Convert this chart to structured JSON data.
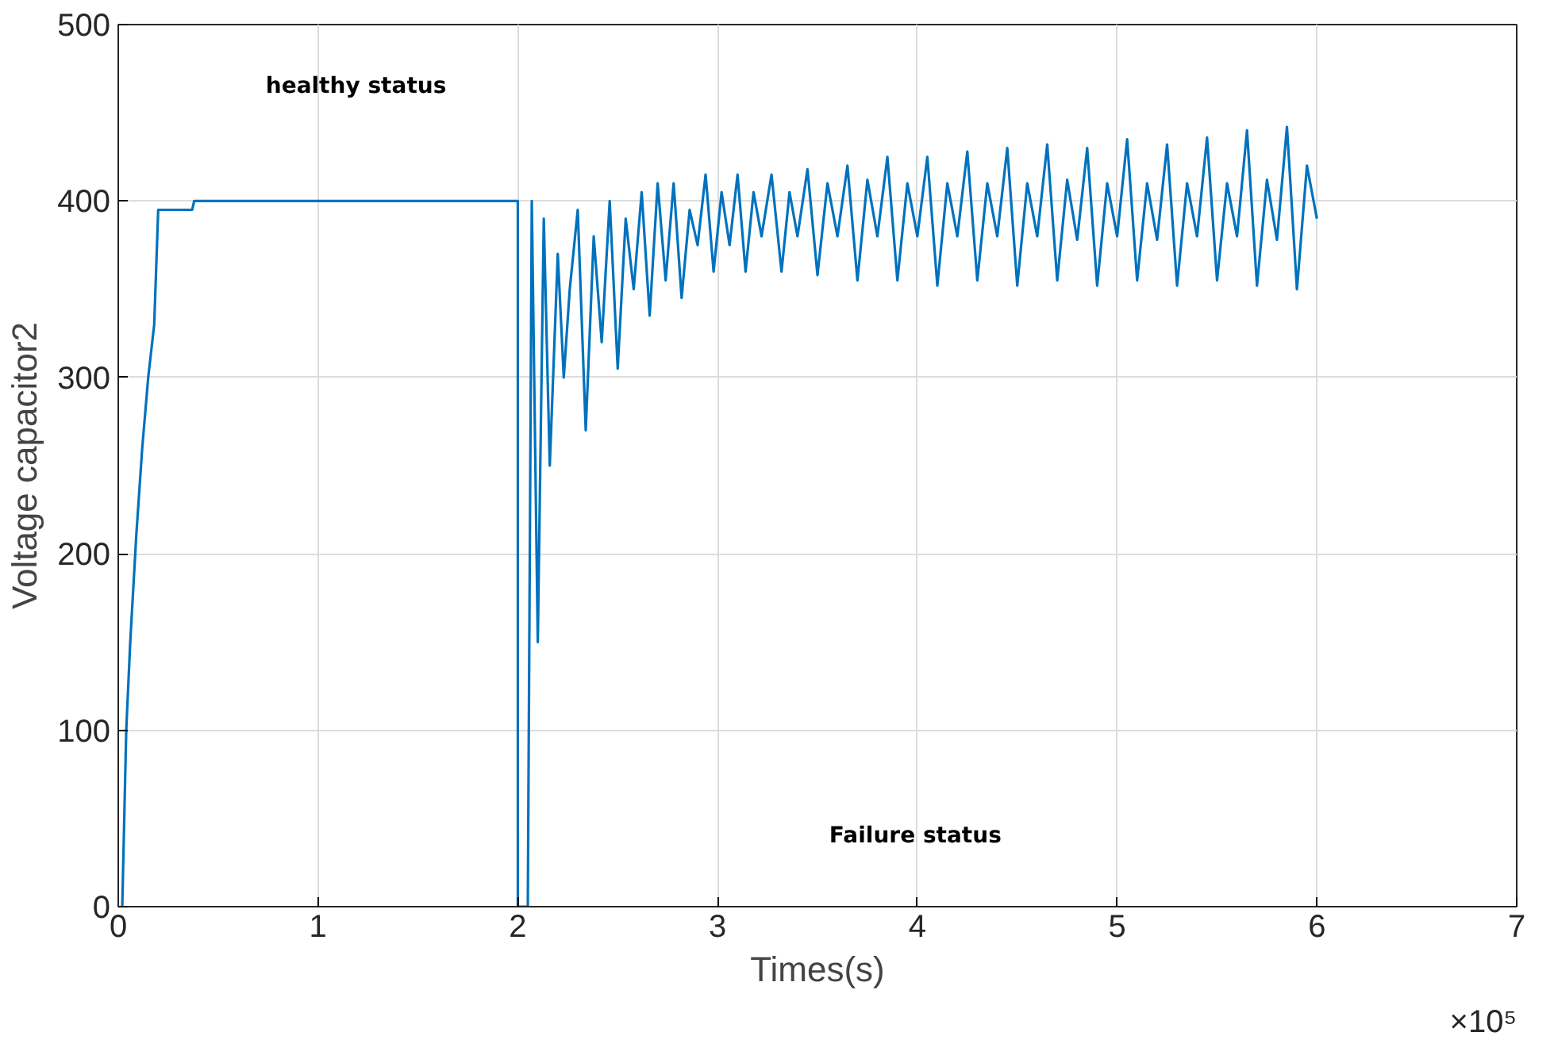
{
  "chart_data": {
    "type": "line",
    "xlabel": "Times(s)",
    "ylabel": "Voltage capacitor2",
    "xlim": [
      0,
      7
    ],
    "ylim": [
      0,
      500
    ],
    "xticks": [
      0,
      1,
      2,
      3,
      4,
      5,
      6,
      7
    ],
    "yticks": [
      0,
      100,
      200,
      300,
      400,
      500
    ],
    "grid": true,
    "line_style": "solid",
    "annotations": [
      "healthy status",
      "Failure status",
      "×10⁵"
    ],
    "series": [
      {
        "color": "#0072bd",
        "x": [
          0.02,
          0.04,
          0.06,
          0.09,
          0.12,
          0.15,
          0.18,
          0.2,
          0.37,
          0.38,
          2.0,
          2.0,
          2.05,
          2.07,
          2.1,
          2.13,
          2.16,
          2.2,
          2.23,
          2.26,
          2.3,
          2.34,
          2.38,
          2.42,
          2.46,
          2.5,
          2.54,
          2.58,
          2.62,
          2.66,
          2.7,
          2.74,
          2.78,
          2.82,
          2.86,
          2.9,
          2.94,
          2.98,
          3.02,
          3.06,
          3.1,
          3.14,
          3.18,
          3.22,
          3.27,
          3.32,
          3.36,
          3.4,
          3.45,
          3.5,
          3.55,
          3.6,
          3.65,
          3.7,
          3.75,
          3.8,
          3.85,
          3.9,
          3.95,
          4.0,
          4.05,
          4.1,
          4.15,
          4.2,
          4.25,
          4.3,
          4.35,
          4.4,
          4.45,
          4.5,
          4.55,
          4.6,
          4.65,
          4.7,
          4.75,
          4.8,
          4.85,
          4.9,
          4.95,
          5.0,
          5.05,
          5.1,
          5.15,
          5.2,
          5.25,
          5.3,
          5.35,
          5.4,
          5.45,
          5.5,
          5.55,
          5.6,
          5.65,
          5.7,
          5.75,
          5.8,
          5.85,
          5.9,
          5.95,
          6.0
        ],
        "values": [
          0,
          100,
          150,
          210,
          260,
          300,
          330,
          395,
          395,
          400,
          400,
          0,
          0,
          400,
          150,
          390,
          250,
          370,
          300,
          350,
          395,
          270,
          380,
          320,
          400,
          305,
          390,
          350,
          405,
          335,
          410,
          355,
          410,
          345,
          395,
          375,
          415,
          360,
          405,
          375,
          415,
          360,
          405,
          380,
          415,
          360,
          405,
          380,
          418,
          358,
          410,
          380,
          420,
          355,
          412,
          380,
          425,
          355,
          410,
          380,
          425,
          352,
          410,
          380,
          428,
          355,
          410,
          380,
          430,
          352,
          410,
          380,
          432,
          355,
          412,
          378,
          430,
          352,
          410,
          380,
          435,
          355,
          410,
          378,
          432,
          352,
          410,
          380,
          436,
          355,
          410,
          380,
          440,
          352,
          412,
          378,
          442,
          350,
          420,
          390
        ]
      }
    ]
  }
}
